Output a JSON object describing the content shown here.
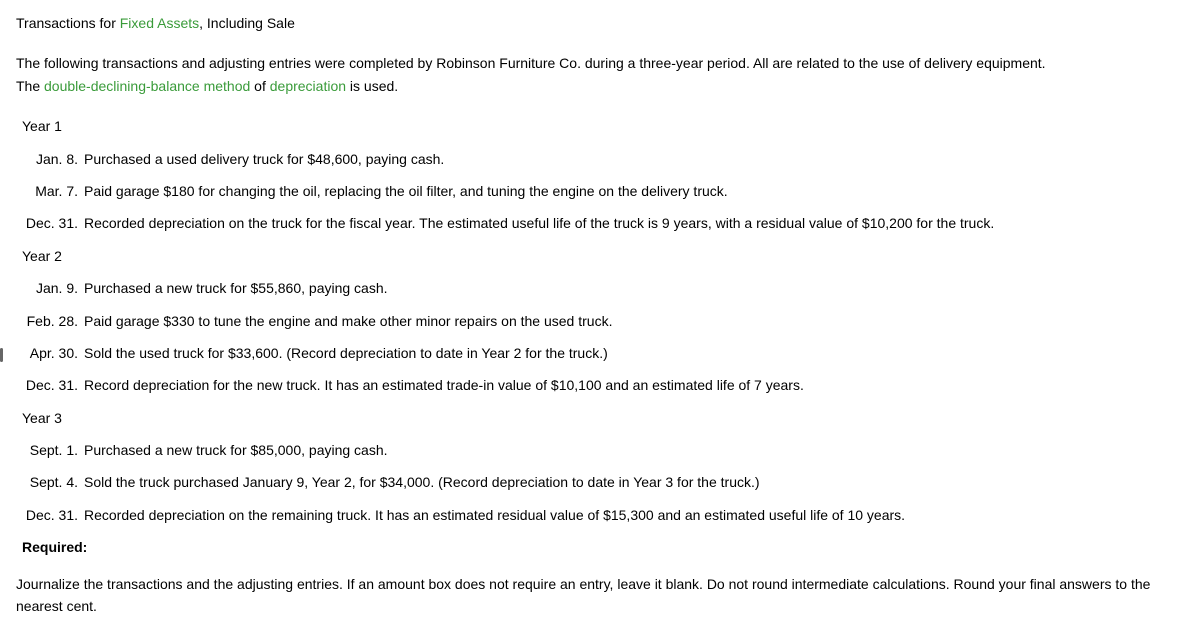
{
  "title": {
    "prefix": "Transactions for ",
    "link": "Fixed Assets",
    "suffix": ", Including Sale"
  },
  "intro": {
    "line1": "The following transactions and adjusting entries were completed by Robinson Furniture Co. during a three-year period. All are related to the use of delivery equipment.",
    "line2_prefix": "The ",
    "line2_link1": "double-declining-balance method",
    "line2_mid": " of ",
    "line2_link2": "depreciation",
    "line2_suffix": " is used."
  },
  "year1_label": "Year 1",
  "year1": [
    {
      "date": "Jan. 8.",
      "text": "Purchased a used delivery truck for $48,600, paying cash."
    },
    {
      "date": "Mar. 7.",
      "text": "Paid garage $180 for changing the oil, replacing the oil filter, and tuning the engine on the delivery truck."
    },
    {
      "date": "Dec. 31.",
      "text": "Recorded depreciation on the truck for the fiscal year. The estimated useful life of the truck is 9 years, with a residual value of $10,200 for the truck."
    }
  ],
  "year2_label": "Year 2",
  "year2": [
    {
      "date": "Jan. 9.",
      "text": "Purchased a new truck for $55,860, paying cash."
    },
    {
      "date": "Feb. 28.",
      "text": "Paid garage $330 to tune the engine and make other minor repairs on the used truck."
    },
    {
      "date": "Apr. 30.",
      "text": "Sold the used truck for $33,600. (Record depreciation to date in Year 2 for the truck.)"
    },
    {
      "date": "Dec. 31.",
      "text": "Record depreciation for the new truck. It has an estimated trade-in value of $10,100 and an estimated life of 7 years."
    }
  ],
  "year3_label": "Year 3",
  "year3": [
    {
      "date": "Sept. 1.",
      "text": "Purchased a new truck for $85,000, paying cash."
    },
    {
      "date": "Sept. 4.",
      "text": "Sold the truck purchased January 9, Year 2, for $34,000. (Record depreciation to date in Year 3 for the truck.)"
    },
    {
      "date": "Dec. 31.",
      "text": "Recorded depreciation on the remaining truck. It has an estimated residual value of $15,300 and an estimated useful life of 10 years."
    }
  ],
  "required_label": "Required:",
  "required_text": "Journalize the transactions and the adjusting entries. If an amount box does not require an entry, leave it blank. Do not round intermediate calculations. Round your final answers to the nearest cent.",
  "colors": {
    "link": "#3a9b3a",
    "text": "#000000",
    "background": "#ffffff"
  }
}
